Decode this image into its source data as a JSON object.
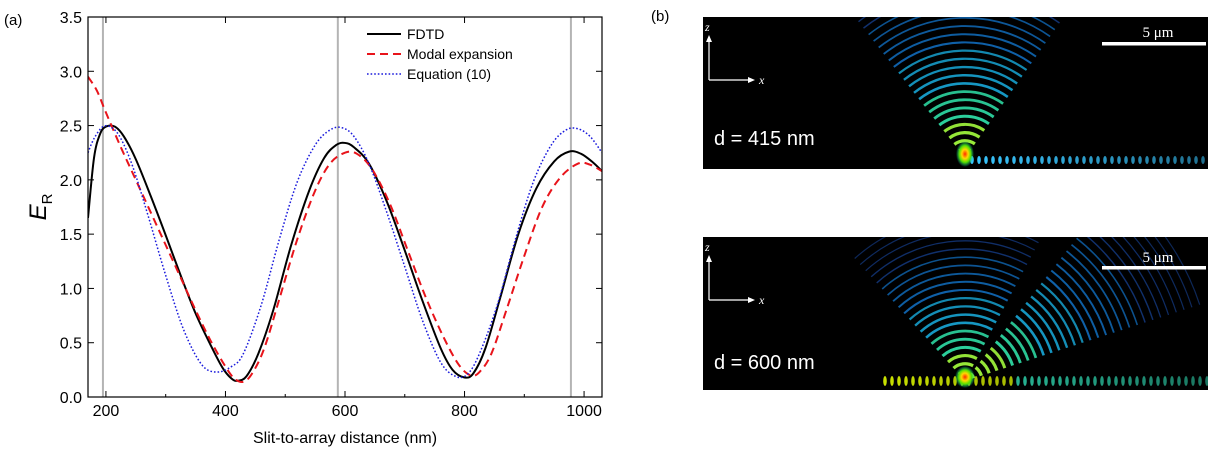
{
  "chart_data": {
    "type": "line",
    "panel_label": "(a)",
    "xlabel": "Slit-to-array distance (nm)",
    "ylabel_main": "E",
    "ylabel_sub": "R",
    "xlim": [
      170,
      1030
    ],
    "ylim": [
      0.0,
      3.5
    ],
    "xticks": [
      200,
      400,
      600,
      800,
      1000
    ],
    "yticks": [
      "0.0",
      "0.5",
      "1.0",
      "1.5",
      "2.0",
      "2.5",
      "3.0",
      "3.5"
    ],
    "vlines": [
      195,
      588,
      978
    ],
    "legend_position": "top-right",
    "series": [
      {
        "name": "FDTD",
        "color": "#000000",
        "style": "solid",
        "points": [
          [
            170,
            1.65
          ],
          [
            180,
            2.2
          ],
          [
            190,
            2.42
          ],
          [
            200,
            2.49
          ],
          [
            215,
            2.49
          ],
          [
            230,
            2.4
          ],
          [
            250,
            2.19
          ],
          [
            275,
            1.85
          ],
          [
            300,
            1.49
          ],
          [
            325,
            1.12
          ],
          [
            350,
            0.77
          ],
          [
            375,
            0.48
          ],
          [
            395,
            0.27
          ],
          [
            410,
            0.17
          ],
          [
            420,
            0.15
          ],
          [
            435,
            0.19
          ],
          [
            455,
            0.4
          ],
          [
            480,
            0.8
          ],
          [
            510,
            1.4
          ],
          [
            540,
            1.9
          ],
          [
            565,
            2.2
          ],
          [
            585,
            2.32
          ],
          [
            600,
            2.34
          ],
          [
            615,
            2.3
          ],
          [
            640,
            2.15
          ],
          [
            670,
            1.8
          ],
          [
            700,
            1.35
          ],
          [
            730,
            0.88
          ],
          [
            760,
            0.45
          ],
          [
            780,
            0.25
          ],
          [
            800,
            0.18
          ],
          [
            815,
            0.22
          ],
          [
            835,
            0.45
          ],
          [
            860,
            0.92
          ],
          [
            890,
            1.5
          ],
          [
            920,
            1.92
          ],
          [
            950,
            2.17
          ],
          [
            975,
            2.26
          ],
          [
            995,
            2.24
          ],
          [
            1015,
            2.16
          ],
          [
            1030,
            2.08
          ]
        ]
      },
      {
        "name": "Modal expansion",
        "color": "#e8141b",
        "style": "dashed",
        "points": [
          [
            170,
            2.95
          ],
          [
            185,
            2.82
          ],
          [
            200,
            2.62
          ],
          [
            225,
            2.3
          ],
          [
            250,
            2.0
          ],
          [
            275,
            1.7
          ],
          [
            300,
            1.4
          ],
          [
            325,
            1.1
          ],
          [
            350,
            0.8
          ],
          [
            375,
            0.52
          ],
          [
            400,
            0.28
          ],
          [
            415,
            0.17
          ],
          [
            430,
            0.14
          ],
          [
            445,
            0.22
          ],
          [
            465,
            0.45
          ],
          [
            490,
            0.9
          ],
          [
            520,
            1.45
          ],
          [
            550,
            1.9
          ],
          [
            575,
            2.15
          ],
          [
            600,
            2.25
          ],
          [
            620,
            2.24
          ],
          [
            645,
            2.1
          ],
          [
            675,
            1.78
          ],
          [
            705,
            1.35
          ],
          [
            735,
            0.92
          ],
          [
            765,
            0.55
          ],
          [
            790,
            0.3
          ],
          [
            810,
            0.2
          ],
          [
            825,
            0.23
          ],
          [
            845,
            0.4
          ],
          [
            870,
            0.8
          ],
          [
            900,
            1.3
          ],
          [
            930,
            1.75
          ],
          [
            960,
            2.02
          ],
          [
            990,
            2.15
          ],
          [
            1010,
            2.14
          ],
          [
            1030,
            2.08
          ]
        ]
      },
      {
        "name": "Equation (10)",
        "color": "#1a1adc",
        "style": "dotted",
        "points": [
          [
            170,
            2.25
          ],
          [
            180,
            2.38
          ],
          [
            195,
            2.49
          ],
          [
            210,
            2.48
          ],
          [
            225,
            2.38
          ],
          [
            245,
            2.12
          ],
          [
            270,
            1.68
          ],
          [
            300,
            1.12
          ],
          [
            330,
            0.62
          ],
          [
            360,
            0.3
          ],
          [
            385,
            0.23
          ],
          [
            410,
            0.28
          ],
          [
            430,
            0.4
          ],
          [
            460,
            0.85
          ],
          [
            490,
            1.45
          ],
          [
            520,
            1.98
          ],
          [
            550,
            2.32
          ],
          [
            575,
            2.46
          ],
          [
            595,
            2.48
          ],
          [
            615,
            2.4
          ],
          [
            640,
            2.15
          ],
          [
            670,
            1.7
          ],
          [
            700,
            1.2
          ],
          [
            730,
            0.7
          ],
          [
            760,
            0.32
          ],
          [
            785,
            0.19
          ],
          [
            805,
            0.21
          ],
          [
            825,
            0.4
          ],
          [
            855,
            0.85
          ],
          [
            885,
            1.45
          ],
          [
            915,
            1.98
          ],
          [
            945,
            2.32
          ],
          [
            970,
            2.46
          ],
          [
            990,
            2.47
          ],
          [
            1010,
            2.4
          ],
          [
            1030,
            2.25
          ]
        ]
      }
    ]
  },
  "panel_b": {
    "panel_label": "(b)",
    "axis_z": "z",
    "axis_x": "x",
    "scale_bar_label": "5 μm",
    "fields": [
      {
        "label": "d = 415 nm",
        "case": "single"
      },
      {
        "label": "d = 600 nm",
        "case": "double"
      }
    ]
  }
}
